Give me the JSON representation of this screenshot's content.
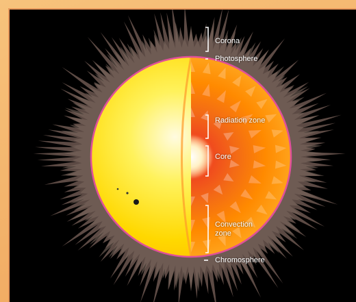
{
  "diagram": {
    "labels": {
      "corona": "Corona",
      "photosphere": "Photosphere",
      "radiation_zone": "Radiation zone",
      "core": "Core",
      "convection_zone": "Convection zone",
      "chromosphere": "Chromosphere"
    },
    "colors": {
      "background": "#000000",
      "corona": "#5c4a44",
      "photosphere_surface": "#ffe000",
      "interior_outer": "#ff8a00",
      "interior_inner": "#e8361a",
      "core": "#fff4d6",
      "rim": "#e0509a",
      "frame": "#f0a35a"
    },
    "icons": [
      "sunspot-icon",
      "bracket-icon",
      "arrow-icon"
    ]
  }
}
